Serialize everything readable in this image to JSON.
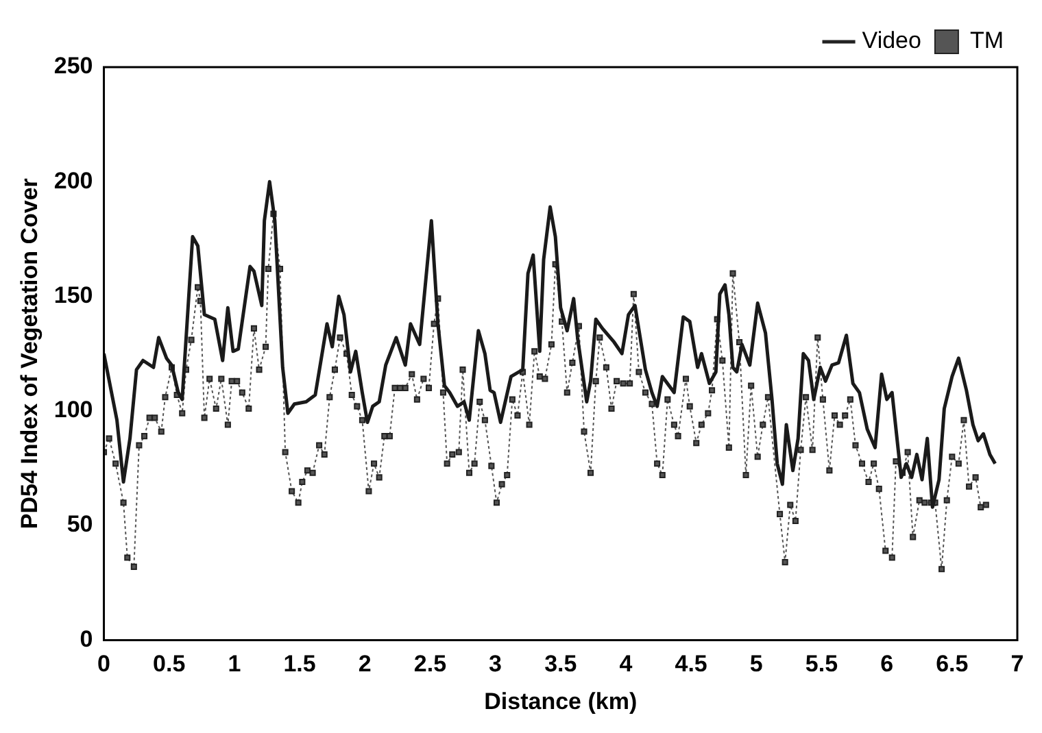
{
  "chart_data": {
    "type": "line",
    "xlabel": "Distance (km)",
    "ylabel": "PD54 Index of Vegetation Cover",
    "xlim": [
      0,
      7
    ],
    "xticks": [
      0,
      0.5,
      1,
      1.5,
      2,
      2.5,
      3,
      3.5,
      4,
      4.5,
      5,
      5.5,
      6,
      6.5,
      7
    ],
    "ylim": [
      0,
      250
    ],
    "yticks": [
      0,
      50,
      100,
      150,
      200,
      250
    ],
    "grid": false,
    "legend": "top right",
    "series": [
      {
        "name": "Video",
        "color": "#1a1a1a",
        "marker": "none",
        "line_style": "solid",
        "x": [
          0,
          0.1,
          0.15,
          0.2,
          0.25,
          0.3,
          0.38,
          0.42,
          0.48,
          0.52,
          0.57,
          0.6,
          0.68,
          0.72,
          0.77,
          0.85,
          0.91,
          0.95,
          0.99,
          1.03,
          1.12,
          1.15,
          1.21,
          1.23,
          1.27,
          1.31,
          1.37,
          1.41,
          1.46,
          1.55,
          1.62,
          1.71,
          1.75,
          1.8,
          1.84,
          1.89,
          1.93,
          1.98,
          2.02,
          2.06,
          2.11,
          2.16,
          2.24,
          2.31,
          2.35,
          2.42,
          2.51,
          2.56,
          2.61,
          2.65,
          2.71,
          2.76,
          2.8,
          2.87,
          2.92,
          2.96,
          2.99,
          3.04,
          3.12,
          3.21,
          3.25,
          3.29,
          3.34,
          3.37,
          3.42,
          3.46,
          3.5,
          3.55,
          3.6,
          3.63,
          3.7,
          3.73,
          3.77,
          3.82,
          3.91,
          3.97,
          4.02,
          4.07,
          4.11,
          4.15,
          4.2,
          4.24,
          4.28,
          4.37,
          4.44,
          4.49,
          4.55,
          4.58,
          4.64,
          4.69,
          4.72,
          4.76,
          4.79,
          4.82,
          4.85,
          4.89,
          4.95,
          5.01,
          5.07,
          5.12,
          5.16,
          5.2,
          5.23,
          5.28,
          5.32,
          5.36,
          5.4,
          5.44,
          5.49,
          5.53,
          5.58,
          5.63,
          5.69,
          5.74,
          5.79,
          5.85,
          5.91,
          5.96,
          6,
          6.04,
          6.11,
          6.15,
          6.19,
          6.23,
          6.27,
          6.31,
          6.35,
          6.4,
          6.44,
          6.5,
          6.55,
          6.61,
          6.66,
          6.7,
          6.74,
          6.79,
          6.83
        ],
        "values": [
          125,
          96,
          69,
          88,
          118,
          122,
          119,
          132,
          123,
          120,
          108,
          105,
          176,
          172,
          142,
          140,
          122,
          145,
          126,
          127,
          163,
          161,
          146,
          183,
          200,
          183,
          119,
          99,
          103,
          104,
          107,
          138,
          128,
          150,
          142,
          117,
          126,
          108,
          95,
          102,
          104,
          120,
          132,
          120,
          138,
          129,
          183,
          138,
          111,
          108,
          102,
          104,
          96,
          135,
          125,
          109,
          108,
          95,
          115,
          118,
          160,
          168,
          126,
          166,
          189,
          176,
          145,
          135,
          149,
          132,
          104,
          113,
          140,
          136,
          130,
          125,
          142,
          146,
          132,
          118,
          108,
          102,
          115,
          108,
          141,
          139,
          119,
          125,
          112,
          117,
          151,
          155,
          142,
          119,
          117,
          129,
          120,
          147,
          134,
          105,
          77,
          68,
          94,
          74,
          88,
          125,
          122,
          105,
          119,
          113,
          120,
          121,
          133,
          112,
          108,
          92,
          84,
          116,
          105,
          108,
          71,
          77,
          71,
          81,
          70,
          88,
          58,
          70,
          101,
          115,
          123,
          109,
          94,
          87,
          90,
          81,
          77
        ]
      },
      {
        "name": "TM",
        "color": "#555555",
        "marker": "square",
        "line_style": "dotted",
        "x": [
          0,
          0.04,
          0.09,
          0.15,
          0.18,
          0.23,
          0.27,
          0.31,
          0.35,
          0.39,
          0.44,
          0.47,
          0.52,
          0.56,
          0.6,
          0.63,
          0.67,
          0.72,
          0.74,
          0.77,
          0.81,
          0.86,
          0.9,
          0.95,
          0.98,
          1.02,
          1.06,
          1.11,
          1.15,
          1.19,
          1.24,
          1.26,
          1.3,
          1.35,
          1.39,
          1.44,
          1.49,
          1.52,
          1.56,
          1.6,
          1.65,
          1.69,
          1.73,
          1.77,
          1.81,
          1.86,
          1.9,
          1.94,
          1.98,
          2.03,
          2.07,
          2.11,
          2.15,
          2.19,
          2.23,
          2.27,
          2.31,
          2.36,
          2.4,
          2.45,
          2.49,
          2.53,
          2.56,
          2.6,
          2.63,
          2.67,
          2.72,
          2.75,
          2.8,
          2.84,
          2.88,
          2.92,
          2.97,
          3.01,
          3.05,
          3.09,
          3.13,
          3.17,
          3.21,
          3.26,
          3.3,
          3.34,
          3.38,
          3.43,
          3.46,
          3.51,
          3.55,
          3.59,
          3.64,
          3.68,
          3.73,
          3.77,
          3.8,
          3.85,
          3.89,
          3.93,
          3.98,
          4.03,
          4.06,
          4.1,
          4.15,
          4.2,
          4.24,
          4.28,
          4.32,
          4.37,
          4.4,
          4.46,
          4.49,
          4.54,
          4.58,
          4.63,
          4.66,
          4.7,
          4.74,
          4.79,
          4.82,
          4.87,
          4.92,
          4.96,
          5.01,
          5.05,
          5.09,
          5.18,
          5.22,
          5.26,
          5.3,
          5.34,
          5.38,
          5.43,
          5.47,
          5.51,
          5.56,
          5.6,
          5.64,
          5.68,
          5.72,
          5.76,
          5.81,
          5.86,
          5.9,
          5.94,
          5.99,
          6.04,
          6.07,
          6.12,
          6.16,
          6.2,
          6.25,
          6.29,
          6.34,
          6.37,
          6.42,
          6.46,
          6.5,
          6.55,
          6.59,
          6.63,
          6.68,
          6.72,
          6.76
        ],
        "values": [
          82,
          88,
          77,
          60,
          36,
          32,
          85,
          89,
          97,
          97,
          91,
          106,
          119,
          107,
          99,
          118,
          131,
          154,
          148,
          97,
          114,
          101,
          114,
          94,
          113,
          113,
          108,
          101,
          136,
          118,
          128,
          162,
          186,
          162,
          82,
          65,
          60,
          69,
          74,
          73,
          85,
          81,
          106,
          118,
          132,
          125,
          107,
          102,
          96,
          65,
          77,
          71,
          89,
          89,
          110,
          110,
          110,
          116,
          105,
          114,
          110,
          138,
          149,
          108,
          77,
          81,
          82,
          118,
          73,
          77,
          104,
          96,
          76,
          60,
          68,
          72,
          105,
          98,
          117,
          94,
          126,
          115,
          114,
          129,
          164,
          139,
          108,
          121,
          137,
          91,
          73,
          113,
          132,
          119,
          101,
          113,
          112,
          112,
          151,
          117,
          108,
          103,
          77,
          72,
          105,
          94,
          89,
          114,
          102,
          86,
          94,
          99,
          109,
          140,
          122,
          84,
          160,
          130,
          72,
          111,
          80,
          94,
          106,
          55,
          34,
          59,
          52,
          83,
          106,
          83,
          132,
          105,
          74,
          98,
          94,
          98,
          105,
          85,
          77,
          69,
          77,
          66,
          39,
          36,
          78,
          73,
          82,
          45,
          61,
          60,
          60,
          60,
          31,
          61,
          80,
          77,
          96,
          67,
          71,
          58,
          59
        ]
      }
    ]
  }
}
